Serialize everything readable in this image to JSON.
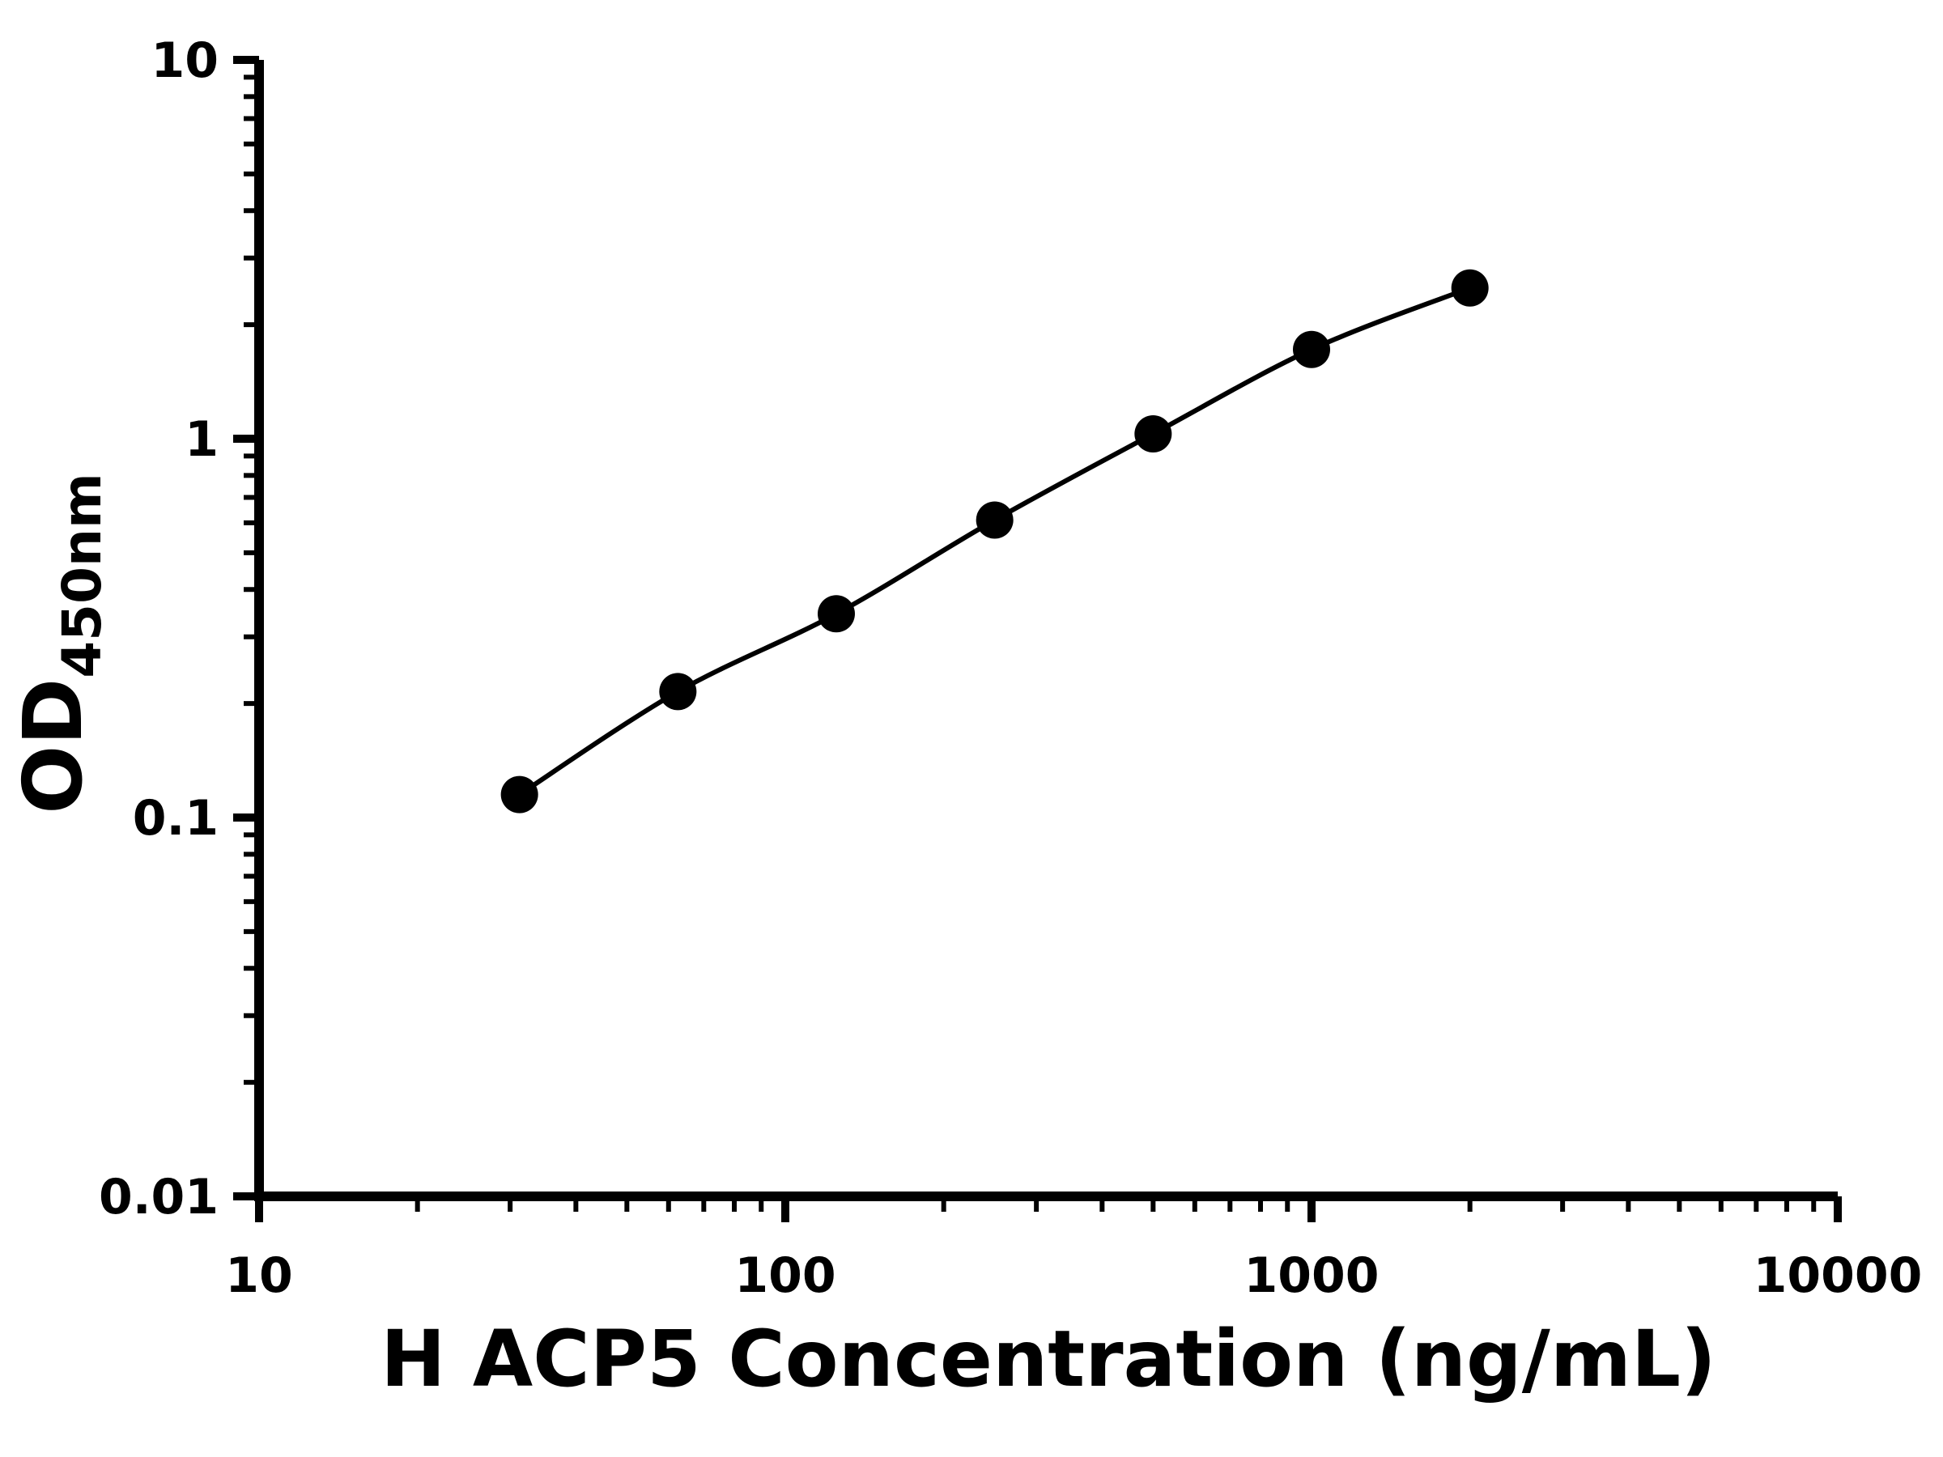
{
  "chart_data": {
    "type": "line",
    "title": "",
    "xlabel": "H ACP5 Concentration (ng/mL)",
    "ylabel_main": "OD",
    "ylabel_sub": "450nm",
    "x_scale": "log10",
    "y_scale": "log10",
    "xlim": [
      10,
      10000
    ],
    "ylim": [
      0.01,
      10
    ],
    "x_ticks": [
      {
        "value": 10,
        "label": "10"
      },
      {
        "value": 100,
        "label": "100"
      },
      {
        "value": 1000,
        "label": "1000"
      },
      {
        "value": 10000,
        "label": "10000"
      }
    ],
    "y_ticks": [
      {
        "value": 0.01,
        "label": "0.01"
      },
      {
        "value": 0.1,
        "label": "0.1"
      },
      {
        "value": 1,
        "label": "1"
      },
      {
        "value": 10,
        "label": "10"
      }
    ],
    "series": [
      {
        "x": [
          31.25,
          62.5,
          125,
          250,
          500,
          1000,
          2000
        ],
        "y": [
          0.115,
          0.215,
          0.345,
          0.61,
          1.03,
          1.72,
          2.5
        ]
      }
    ],
    "marker": {
      "shape": "circle",
      "color": "#000000",
      "radius_px": 23
    },
    "line_color": "#000000",
    "axis_color": "#000000",
    "background_color": "#ffffff",
    "grid": false,
    "legend": "none",
    "tick_direction": "out",
    "minor_ticks": "log-decade minors on both axes"
  }
}
